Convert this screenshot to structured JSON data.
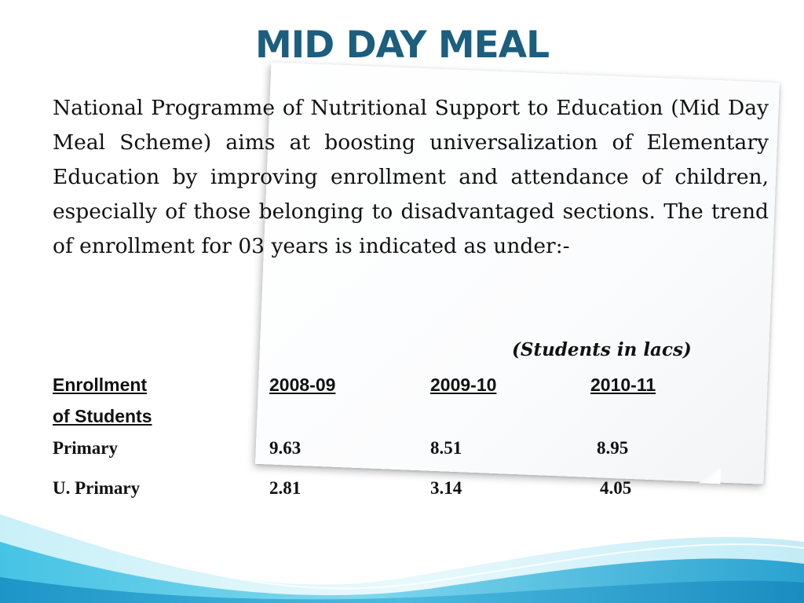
{
  "slide": {
    "title": "MID DAY MEAL",
    "intro": "National Programme of Nutritional Support to Education (Mid Day Meal Scheme) aims at boosting universalization of Elementary Education by improving enrollment and attendance of children, especially of those belonging to disadvantaged sections. The trend of enrollment for 03 years is indicated as under:-",
    "units_note": "(Students in lacs)"
  },
  "table": {
    "header": {
      "label_line1": "Enrollment",
      "label_line2": "of Students",
      "years": [
        "2008-09",
        "2009-10",
        "2010-11"
      ]
    },
    "rows": [
      {
        "label": "Primary",
        "values": [
          "9.63",
          "8.51",
          "8.95"
        ]
      },
      {
        "label": "U. Primary",
        "values": [
          "2.81",
          "3.14",
          "4.05"
        ]
      }
    ]
  },
  "colors": {
    "title": "#1b5e7e",
    "wave_light": "#a9e4f3",
    "wave_mid": "#5ccae6",
    "wave_dark": "#2a9fcc"
  }
}
